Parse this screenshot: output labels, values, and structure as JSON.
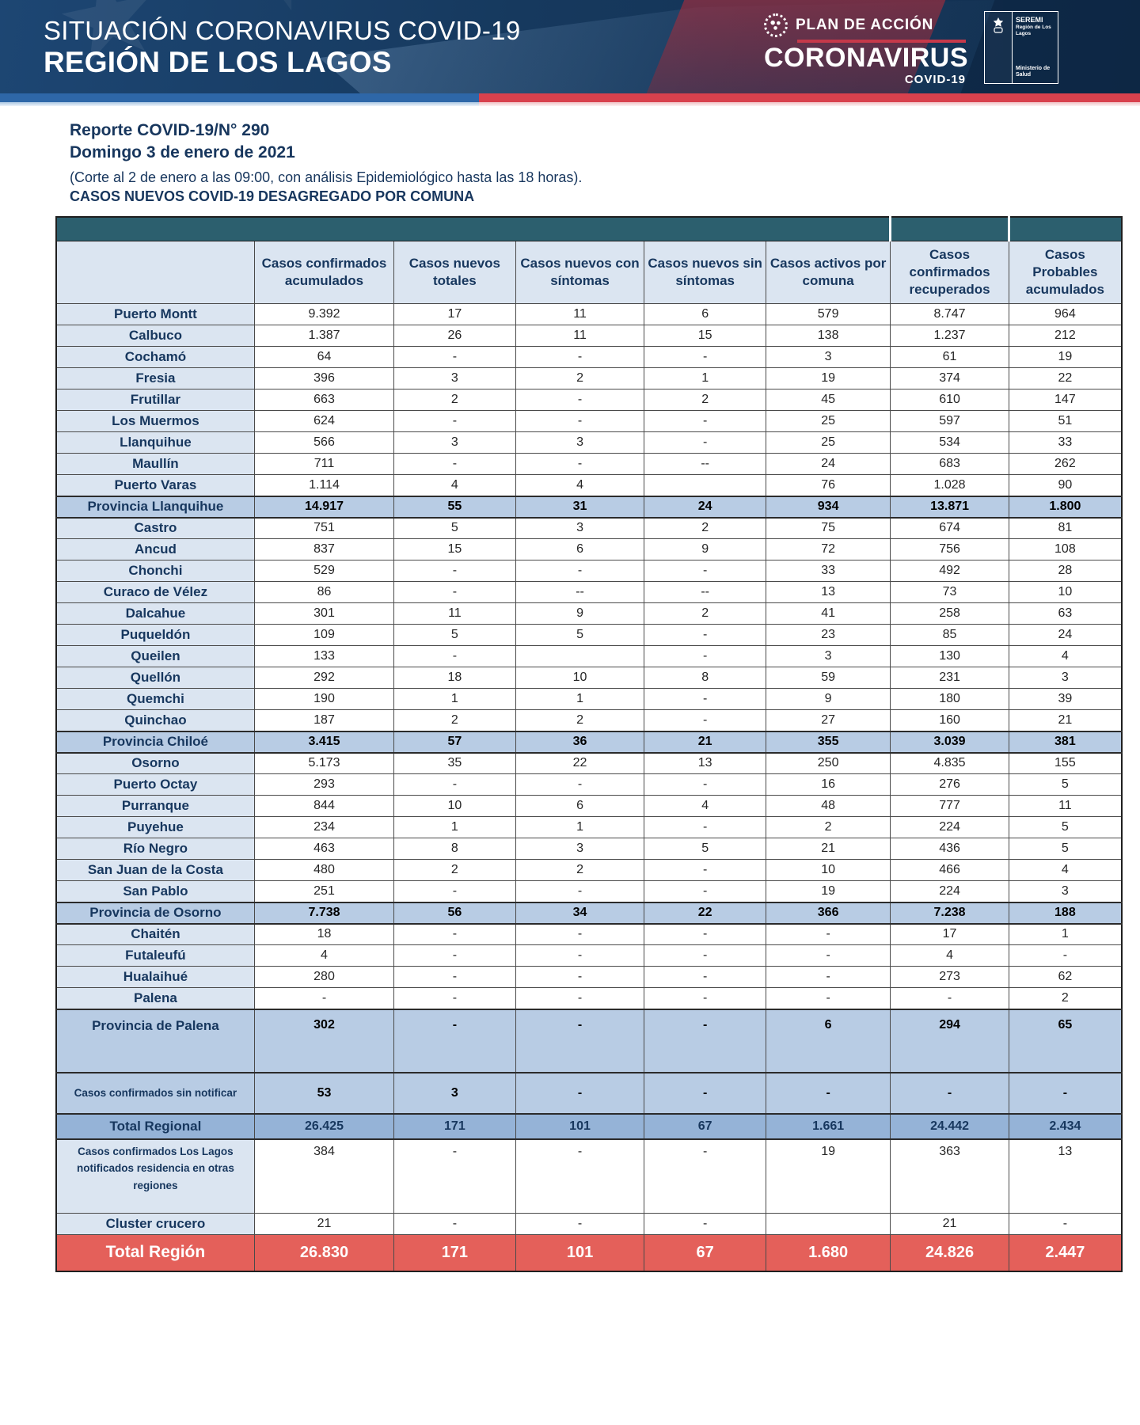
{
  "header": {
    "title_line1": "SITUACIÓN CORONAVIRUS COVID-19",
    "title_line2": "REGIÓN DE LOS LAGOS",
    "plan_label": "PLAN DE ACCIÓN",
    "plan_title": "CORONAVIRUS",
    "plan_sub": "COVID-19",
    "seremi_name": "SEREMI",
    "seremi_region": "Región de Los Lagos",
    "seremi_ministry": "Ministerio de Salud"
  },
  "report": {
    "number_line": "Reporte COVID-19/N° 290",
    "date_line": "Domingo 3 de enero de 2021",
    "cutoff_line": "(Corte al 2 de enero a las 09:00, con análisis Epidemiológico hasta las 18 horas).",
    "section_title": "CASOS NUEVOS COVID-19 DESAGREGADO POR COMUNA"
  },
  "colors": {
    "hero_navy": "#16395e",
    "stripe_blue": "#2e67a8",
    "stripe_red": "#d8414d",
    "band_teal": "#2c5f6e",
    "header_cell_blue": "#dbe5f1",
    "subtotal_blue": "#b8cce4",
    "total_blue": "#95b3d7",
    "grand_red": "#e4605a",
    "text_navy": "#17375e"
  },
  "table": {
    "columns": [
      "Casos confirmados acumulados",
      "Casos nuevos totales",
      "Casos nuevos con síntomas",
      "Casos nuevos sin síntomas",
      "Casos activos por comuna",
      "Casos confirmados recuperados",
      "Casos Probables acumulados"
    ],
    "rows": [
      {
        "label": "Puerto Montt",
        "cls": "",
        "values": [
          "9.392",
          "17",
          "11",
          "6",
          "579",
          "8.747",
          "964"
        ]
      },
      {
        "label": "Calbuco",
        "cls": "",
        "values": [
          "1.387",
          "26",
          "11",
          "15",
          "138",
          "1.237",
          "212"
        ]
      },
      {
        "label": "Cochamó",
        "cls": "",
        "values": [
          "64",
          "-",
          "-",
          "-",
          "3",
          "61",
          "19"
        ]
      },
      {
        "label": "Fresia",
        "cls": "",
        "values": [
          "396",
          "3",
          "2",
          "1",
          "19",
          "374",
          "22"
        ]
      },
      {
        "label": "Frutillar",
        "cls": "",
        "values": [
          "663",
          "2",
          "-",
          "2",
          "45",
          "610",
          "147"
        ]
      },
      {
        "label": "Los Muermos",
        "cls": "",
        "values": [
          "624",
          "-",
          "-",
          "-",
          "25",
          "597",
          "51"
        ]
      },
      {
        "label": "Llanquihue",
        "cls": "",
        "values": [
          "566",
          "3",
          "3",
          "-",
          "25",
          "534",
          "33"
        ]
      },
      {
        "label": "Maullín",
        "cls": "",
        "values": [
          "711",
          "-",
          "-",
          "--",
          "24",
          "683",
          "262"
        ]
      },
      {
        "label": "Puerto Varas",
        "cls": "",
        "values": [
          "1.114",
          "4",
          "4",
          "",
          "76",
          "1.028",
          "90"
        ]
      },
      {
        "label": "Provincia Llanquihue",
        "cls": "subtotal",
        "values": [
          "14.917",
          "55",
          "31",
          "24",
          "934",
          "13.871",
          "1.800"
        ]
      },
      {
        "label": "Castro",
        "cls": "",
        "values": [
          "751",
          "5",
          "3",
          "2",
          "75",
          "674",
          "81"
        ]
      },
      {
        "label": "Ancud",
        "cls": "",
        "values": [
          "837",
          "15",
          "6",
          "9",
          "72",
          "756",
          "108"
        ]
      },
      {
        "label": "Chonchi",
        "cls": "",
        "values": [
          "529",
          "-",
          "-",
          "-",
          "33",
          "492",
          "28"
        ]
      },
      {
        "label": "Curaco de Vélez",
        "cls": "",
        "values": [
          "86",
          "-",
          "--",
          "--",
          "13",
          "73",
          "10"
        ]
      },
      {
        "label": "Dalcahue",
        "cls": "",
        "values": [
          "301",
          "11",
          "9",
          "2",
          "41",
          "258",
          "63"
        ]
      },
      {
        "label": "Puqueldón",
        "cls": "",
        "values": [
          "109",
          "5",
          "5",
          "-",
          "23",
          "85",
          "24"
        ]
      },
      {
        "label": "Queilen",
        "cls": "",
        "values": [
          "133",
          "-",
          "",
          "-",
          "3",
          "130",
          "4"
        ]
      },
      {
        "label": "Quellón",
        "cls": "",
        "values": [
          "292",
          "18",
          "10",
          "8",
          "59",
          "231",
          "3"
        ]
      },
      {
        "label": "Quemchi",
        "cls": "",
        "values": [
          "190",
          "1",
          "1",
          "-",
          "9",
          "180",
          "39"
        ]
      },
      {
        "label": "Quinchao",
        "cls": "",
        "values": [
          "187",
          "2",
          "2",
          "-",
          "27",
          "160",
          "21"
        ]
      },
      {
        "label": "Provincia Chiloé",
        "cls": "subtotal",
        "values": [
          "3.415",
          "57",
          "36",
          "21",
          "355",
          "3.039",
          "381"
        ]
      },
      {
        "label": "Osorno",
        "cls": "",
        "values": [
          "5.173",
          "35",
          "22",
          "13",
          "250",
          "4.835",
          "155"
        ]
      },
      {
        "label": "Puerto Octay",
        "cls": "",
        "values": [
          "293",
          "-",
          "-",
          "-",
          "16",
          "276",
          "5"
        ]
      },
      {
        "label": "Purranque",
        "cls": "",
        "values": [
          "844",
          "10",
          "6",
          "4",
          "48",
          "777",
          "11"
        ]
      },
      {
        "label": "Puyehue",
        "cls": "",
        "values": [
          "234",
          "1",
          "1",
          "-",
          "2",
          "224",
          "5"
        ]
      },
      {
        "label": "Río Negro",
        "cls": "",
        "values": [
          "463",
          "8",
          "3",
          "5",
          "21",
          "436",
          "5"
        ]
      },
      {
        "label": "San Juan de la Costa",
        "cls": "",
        "values": [
          "480",
          "2",
          "2",
          "-",
          "10",
          "466",
          "4"
        ]
      },
      {
        "label": "San Pablo",
        "cls": "",
        "values": [
          "251",
          "-",
          "-",
          "-",
          "19",
          "224",
          "3"
        ]
      },
      {
        "label": "Provincia de Osorno",
        "cls": "subtotal",
        "values": [
          "7.738",
          "56",
          "34",
          "22",
          "366",
          "7.238",
          "188"
        ]
      },
      {
        "label": "Chaitén",
        "cls": "",
        "values": [
          "18",
          "-",
          "-",
          "-",
          "-",
          "17",
          "1"
        ]
      },
      {
        "label": "Futaleufú",
        "cls": "",
        "values": [
          "4",
          "-",
          "-",
          "-",
          "-",
          "4",
          "-"
        ]
      },
      {
        "label": "Hualaihué",
        "cls": "",
        "values": [
          "280",
          "-",
          "-",
          "-",
          "-",
          "273",
          "62"
        ]
      },
      {
        "label": "Palena",
        "cls": "",
        "values": [
          "-",
          "-",
          "-",
          "-",
          "-",
          "-",
          "2"
        ]
      },
      {
        "label": "Provincia de Palena",
        "cls": "subtotal tall",
        "values": [
          "302",
          "-",
          "-",
          "-",
          "6",
          "294",
          "65"
        ]
      },
      {
        "label": "Casos confirmados sin notificar",
        "cls": "subtotal sinnot",
        "values": [
          "53",
          "3",
          "-",
          "-",
          "-",
          "-",
          "-"
        ]
      },
      {
        "label": "Total Regional",
        "cls": "total",
        "values": [
          "26.425",
          "171",
          "101",
          "67",
          "1.661",
          "24.442",
          "2.434"
        ]
      },
      {
        "label": "Casos confirmados Los Lagos  notificados residencia en otras regiones",
        "cls": "otras",
        "values": [
          "384",
          "-",
          "-",
          "-",
          "19",
          "363",
          "13"
        ]
      },
      {
        "label": "Cluster crucero",
        "cls": "",
        "values": [
          "21",
          "-",
          "-",
          "-",
          "",
          "21",
          "-"
        ]
      },
      {
        "label": "Total Región",
        "cls": "grand",
        "values": [
          "26.830",
          "171",
          "101",
          "67",
          "1.680",
          "24.826",
          "2.447"
        ]
      }
    ]
  }
}
